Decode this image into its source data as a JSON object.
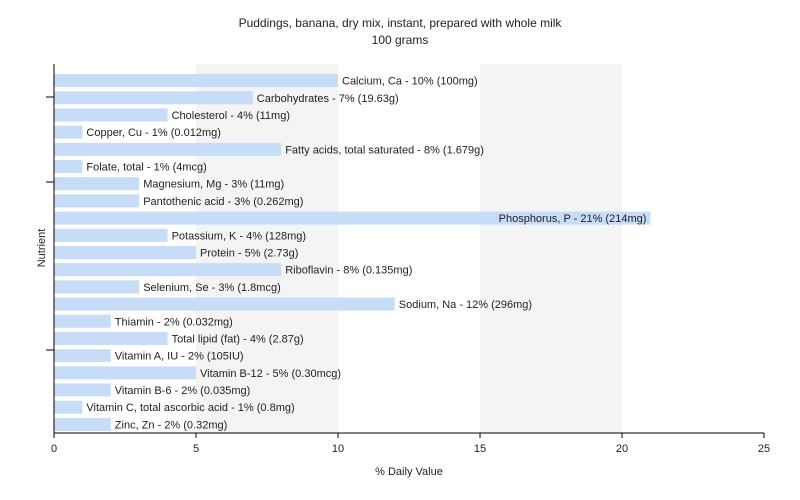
{
  "chart_data": {
    "type": "bar",
    "orientation": "horizontal",
    "title": "Puddings, banana, dry mix, instant, prepared with whole milk",
    "subtitle": "100 grams",
    "xlabel": "% Daily Value",
    "ylabel": "Nutrient",
    "xlim": [
      0,
      25
    ],
    "xticks": [
      0,
      5,
      10,
      15,
      20,
      25
    ],
    "bar_color": "#c6dcf7",
    "grid": "vertical-bands",
    "categories": [
      "Calcium, Ca - 10% (100mg)",
      "Carbohydrates - 7% (19.63g)",
      "Cholesterol - 4% (11mg)",
      "Copper, Cu - 1% (0.012mg)",
      "Fatty acids, total saturated - 8% (1.679g)",
      "Folate, total - 1% (4mcg)",
      "Magnesium, Mg - 3% (11mg)",
      "Pantothenic acid - 3% (0.262mg)",
      "Phosphorus, P - 21% (214mg)",
      "Potassium, K - 4% (128mg)",
      "Protein - 5% (2.73g)",
      "Riboflavin - 8% (0.135mg)",
      "Selenium, Se - 3% (1.8mcg)",
      "Sodium, Na - 12% (296mg)",
      "Thiamin - 2% (0.032mg)",
      "Total lipid (fat) - 4% (2.87g)",
      "Vitamin A, IU - 2% (105IU)",
      "Vitamin B-12 - 5% (0.30mcg)",
      "Vitamin B-6 - 2% (0.035mg)",
      "Vitamin C, total ascorbic acid - 1% (0.8mg)",
      "Zinc, Zn - 2% (0.32mg)"
    ],
    "values": [
      10,
      7,
      4,
      1,
      8,
      1,
      3,
      3,
      21,
      4,
      5,
      8,
      3,
      12,
      2,
      4,
      2,
      5,
      2,
      1,
      2
    ]
  }
}
